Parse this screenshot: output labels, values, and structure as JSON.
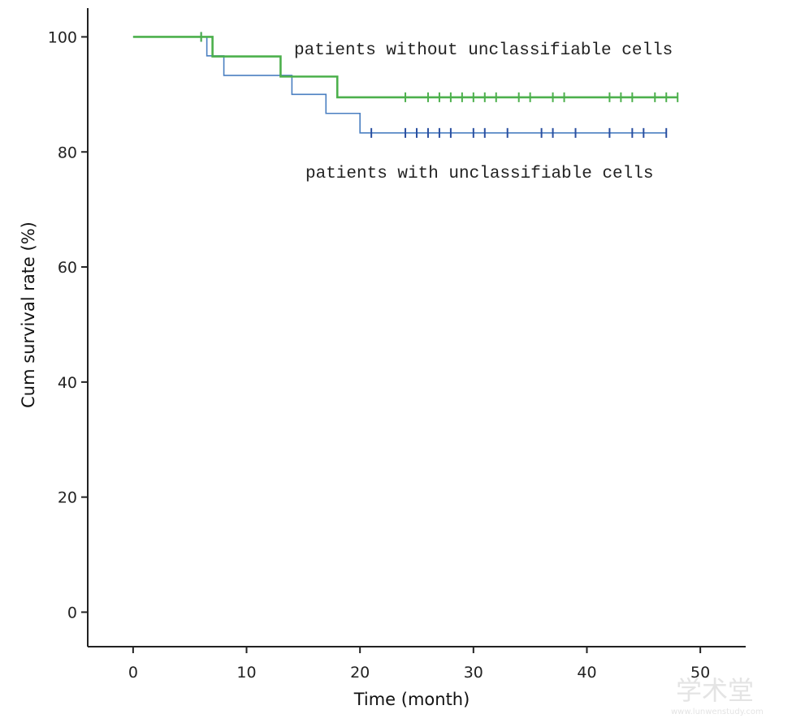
{
  "chart_data": {
    "type": "line",
    "chart_kind": "kaplan-meier survival curve",
    "xlabel": "Time (month)",
    "ylabel": "Cum survival rate (%)",
    "xlim": [
      -4,
      54
    ],
    "ylim": [
      -6,
      105
    ],
    "x_ticks": [
      0,
      10,
      20,
      30,
      40,
      50
    ],
    "y_ticks": [
      0,
      20,
      40,
      60,
      80,
      100
    ],
    "grid": false,
    "series": [
      {
        "name": "patients with unclassifiable cells",
        "color": "#4a7fc1",
        "censor_color": "#2a4fa0",
        "steps": [
          [
            0,
            100
          ],
          [
            6.5,
            96.7
          ],
          [
            8,
            93.3
          ],
          [
            14,
            90.0
          ],
          [
            17,
            86.7
          ],
          [
            20,
            83.3
          ],
          [
            47,
            83.3
          ]
        ],
        "censored": [
          6,
          21,
          24,
          25,
          26,
          27,
          28,
          30,
          31,
          33,
          36,
          37,
          39,
          42,
          44,
          45,
          47
        ]
      },
      {
        "name": "patients without unclassifiable cells",
        "color": "#4cb04c",
        "censor_color": "#4cb04c",
        "steps": [
          [
            0,
            100
          ],
          [
            7,
            96.6
          ],
          [
            13,
            93.1
          ],
          [
            18,
            89.5
          ],
          [
            48,
            89.5
          ]
        ],
        "censored": [
          6,
          24,
          26,
          27,
          28,
          29,
          30,
          31,
          32,
          34,
          35,
          37,
          38,
          42,
          43,
          44,
          46,
          47,
          48
        ]
      }
    ],
    "annotations": [
      {
        "text": "patients without unclassifiable cells",
        "series": 1
      },
      {
        "text": "patients with unclassifiable cells",
        "series": 0
      }
    ]
  },
  "watermark": {
    "text": "学术堂",
    "sub": "www.lunwenstudy.com"
  }
}
